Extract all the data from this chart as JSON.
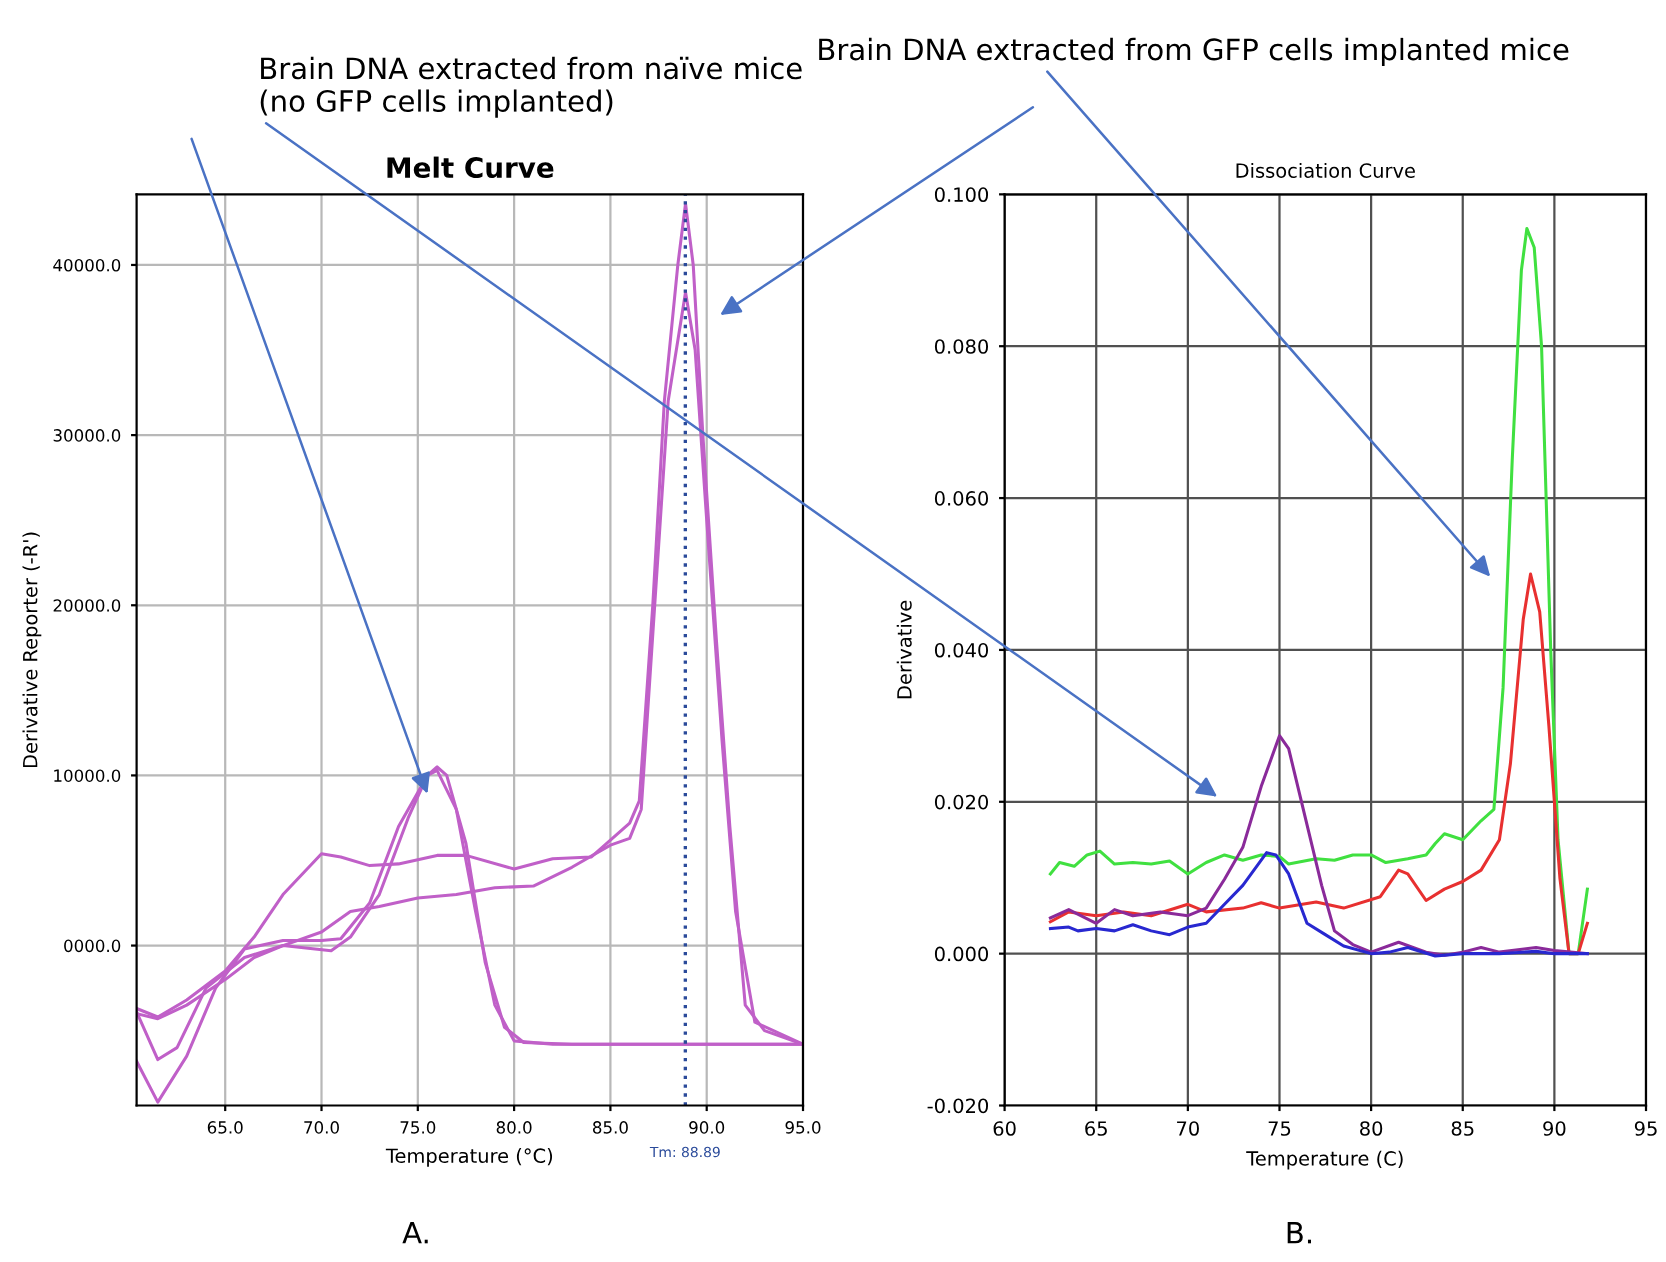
{
  "chart_data": [
    {
      "type": "line",
      "title": "Melt Curve",
      "xlabel": "Temperature (°C)",
      "ylabel": "Derivative Reporter (-R')",
      "xlim": [
        60.4,
        95
      ],
      "ylim": [
        -9400,
        44150
      ],
      "xticks": [
        {
          "value": 65,
          "label": "65.0"
        },
        {
          "value": 70,
          "label": "70.0"
        },
        {
          "value": 75,
          "label": "75.0"
        },
        {
          "value": 80,
          "label": "80.0"
        },
        {
          "value": 85,
          "label": "85.0"
        },
        {
          "value": 90,
          "label": "90.0"
        },
        {
          "value": 95,
          "label": "95.0"
        }
      ],
      "yticks": [
        {
          "value": 0,
          "label": "0000.0"
        },
        {
          "value": 10000,
          "label": "10000.0"
        },
        {
          "value": 20000,
          "label": "20000.0"
        },
        {
          "value": 30000,
          "label": "30000.0"
        },
        {
          "value": 40000,
          "label": "40000.0"
        }
      ],
      "grid": true,
      "ref_lines": [
        {
          "axis": "x",
          "value": 88.89,
          "label": "Tm: 88.89",
          "color": "#2a4a9a",
          "line_style": "dotted"
        }
      ],
      "series": [
        {
          "color": "#c060c8",
          "x": [
            60.4,
            61.5,
            63,
            65,
            66.5,
            68,
            70,
            71,
            72.5,
            74,
            76,
            77.5,
            80,
            82,
            84,
            86,
            86.5,
            87.2,
            87.8,
            88.5,
            88.9,
            89.3,
            89.8,
            90.5,
            91.2,
            92,
            93,
            95
          ],
          "values": [
            -3700,
            -4200,
            -3200,
            -1500,
            500,
            3000,
            5400,
            5200,
            4700,
            4800,
            5300,
            5300,
            4500,
            5100,
            5200,
            7200,
            8500,
            20000,
            32000,
            40000,
            43600,
            40000,
            30000,
            18000,
            7000,
            -3500,
            -5000,
            -5800
          ]
        },
        {
          "color": "#c060c8",
          "x": [
            60.4,
            61.5,
            63,
            65,
            66.5,
            68,
            70,
            71.5,
            73,
            75,
            77,
            79,
            81,
            83,
            85,
            86,
            86.6,
            87.3,
            88,
            88.9,
            89.4,
            90,
            90.8,
            91.5,
            92.5,
            95
          ],
          "values": [
            -4000,
            -4300,
            -3500,
            -2000,
            -700,
            0,
            800,
            2000,
            2300,
            2800,
            3000,
            3400,
            3500,
            4600,
            5900,
            6300,
            8000,
            20000,
            32000,
            38400,
            35000,
            25000,
            12000,
            2000,
            -4500,
            -5800
          ]
        },
        {
          "color": "#c060c8",
          "x": [
            60.4,
            61.5,
            62.5,
            64,
            66,
            68,
            70.5,
            71.5,
            73,
            74.5,
            75.5,
            76,
            76.5,
            77.5,
            78.5,
            79.5,
            80.5,
            83,
            95
          ],
          "values": [
            -3900,
            -6700,
            -6000,
            -2500,
            -700,
            0,
            -300,
            500,
            3000,
            7500,
            10000,
            10500,
            10000,
            6000,
            -1000,
            -4800,
            -5700,
            -5800,
            -5800
          ]
        },
        {
          "color": "#c060c8",
          "x": [
            60.4,
            61.5,
            63,
            64.5,
            66,
            68,
            70,
            71,
            72.5,
            74,
            75.5,
            76,
            77,
            78,
            79,
            80,
            82,
            95
          ],
          "values": [
            -6800,
            -9200,
            -6500,
            -2500,
            -200,
            300,
            300,
            400,
            2500,
            7000,
            10000,
            10300,
            8000,
            2000,
            -3500,
            -5600,
            -5800,
            -5800
          ]
        }
      ],
      "annotations": [
        "Brain DNA extracted from naïve mice\n(no GFP cells implanted)",
        "A."
      ]
    },
    {
      "type": "line",
      "title": "Dissociation Curve",
      "xlabel": "Temperature (C)",
      "ylabel": "Derivative",
      "xlim": [
        60,
        95
      ],
      "ylim": [
        -0.02,
        0.1
      ],
      "xticks": [
        60,
        65,
        70,
        75,
        80,
        85,
        90,
        95
      ],
      "yticks": [
        {
          "value": -0.02,
          "label": "-0.020"
        },
        {
          "value": 0,
          "label": "0.000"
        },
        {
          "value": 0.02,
          "label": "0.020"
        },
        {
          "value": 0.04,
          "label": "0.040"
        },
        {
          "value": 0.06,
          "label": "0.060"
        },
        {
          "value": 0.08,
          "label": "0.080"
        },
        {
          "value": 0.1,
          "label": "0.100"
        }
      ],
      "grid": true,
      "series": [
        {
          "color": "#40e040",
          "x": [
            62.5,
            63,
            63.8,
            64.5,
            65.2,
            66,
            67,
            68,
            69,
            70,
            71,
            72,
            73,
            74,
            75,
            75.5,
            77,
            78,
            79,
            80,
            80.8,
            82,
            83,
            83.5,
            84,
            85,
            86,
            86.7,
            87.2,
            87.7,
            88.2,
            88.5,
            88.9,
            89.3,
            89.8,
            90.2,
            90.8,
            91.3,
            91.8
          ],
          "values": [
            0.0105,
            0.012,
            0.0115,
            0.013,
            0.0135,
            0.0118,
            0.012,
            0.0118,
            0.0122,
            0.0105,
            0.012,
            0.013,
            0.0123,
            0.013,
            0.0128,
            0.0118,
            0.0125,
            0.0123,
            0.013,
            0.013,
            0.012,
            0.0125,
            0.013,
            0.0145,
            0.0158,
            0.015,
            0.0175,
            0.019,
            0.035,
            0.065,
            0.09,
            0.0955,
            0.093,
            0.08,
            0.04,
            0.015,
            0,
            0,
            0.0085
          ]
        },
        {
          "color": "#e83030",
          "x": [
            62.5,
            63.5,
            65,
            66.5,
            68,
            70,
            71,
            73,
            74,
            75,
            77,
            78.5,
            80.5,
            81.5,
            82,
            83,
            84,
            85,
            86,
            87,
            87.6,
            88.3,
            88.7,
            89.2,
            89.7,
            90.3,
            90.8,
            91.3,
            91.8
          ],
          "values": [
            0.0042,
            0.0055,
            0.005,
            0.0055,
            0.005,
            0.0065,
            0.0055,
            0.006,
            0.0067,
            0.006,
            0.0068,
            0.006,
            0.0075,
            0.011,
            0.0105,
            0.007,
            0.0085,
            0.0095,
            0.011,
            0.015,
            0.025,
            0.044,
            0.05,
            0.045,
            0.03,
            0.01,
            0,
            0,
            0.004
          ]
        },
        {
          "color": "#8a2a9a",
          "x": [
            62.5,
            63.5,
            65,
            66,
            67,
            68.5,
            70,
            71,
            72,
            73,
            74,
            75,
            75.5,
            76.5,
            77.3,
            78,
            79,
            80,
            81.5,
            83,
            84,
            85,
            86,
            87,
            89,
            90,
            91.8
          ],
          "values": [
            0.0047,
            0.0058,
            0.004,
            0.0058,
            0.005,
            0.0055,
            0.005,
            0.006,
            0.0098,
            0.014,
            0.022,
            0.0287,
            0.027,
            0.017,
            0.009,
            0.003,
            0.0012,
            0.0002,
            0.0015,
            0.0002,
            -0.0002,
            0.0002,
            0.0008,
            0.0002,
            0.0008,
            0.0004,
            0
          ]
        },
        {
          "color": "#2828d0",
          "x": [
            62.5,
            63.5,
            64,
            65,
            66,
            67,
            68,
            69,
            70,
            71,
            72,
            73,
            74.3,
            74.8,
            75.5,
            76.5,
            77.5,
            78.5,
            80,
            81,
            82,
            83.5,
            85,
            87,
            89,
            90,
            91.8
          ],
          "values": [
            0.0033,
            0.0035,
            0.003,
            0.0033,
            0.003,
            0.0038,
            0.003,
            0.0025,
            0.0035,
            0.004,
            0.0065,
            0.009,
            0.0133,
            0.013,
            0.0105,
            0.004,
            0.0025,
            0.001,
            0,
            0.0002,
            0.0008,
            -0.0003,
            0,
            0,
            0.0003,
            0,
            0
          ]
        }
      ],
      "annotations": [
        "Brain DNA extracted from GFP cells implanted mice",
        "B."
      ]
    }
  ]
}
